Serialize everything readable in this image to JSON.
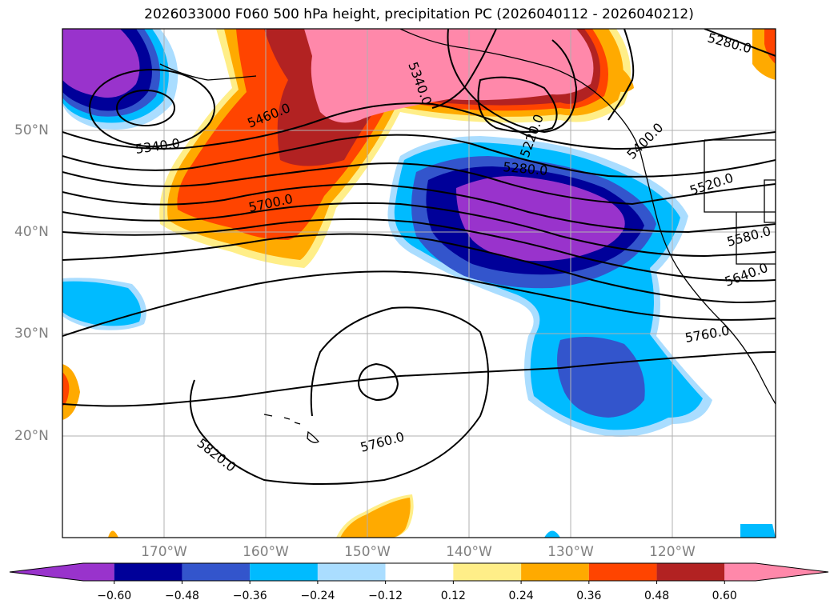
{
  "title": "2026033000 F060 500 hPa height, precipitation PC (2026040112 - 2026040212)",
  "lat_labels": [
    "50°N",
    "40°N",
    "30°N",
    "20°N"
  ],
  "lon_labels": [
    "170°W",
    "160°W",
    "150°W",
    "140°W",
    "130°W",
    "120°W"
  ],
  "colorbar": {
    "ticks": [
      "−0.60",
      "−0.48",
      "−0.36",
      "−0.24",
      "−0.12",
      "0.12",
      "0.24",
      "0.36",
      "0.48",
      "0.60"
    ],
    "colors": [
      "#9933cc",
      "#000099",
      "#3355cc",
      "#00bbff",
      "#aaddff",
      "#ffffff",
      "#ffee88",
      "#ffaa00",
      "#ff4400",
      "#b22222",
      "#ff88aa"
    ]
  },
  "contour_labels": [
    "5280.0",
    "5340.0",
    "5340.0",
    "5460.0",
    "5700.0",
    "5280.0",
    "5220.0",
    "5400.0",
    "5520.0",
    "5580.0",
    "5640.0",
    "5760.0",
    "5760.0",
    "5820.0"
  ],
  "fill_colors": {
    "purple": "#9933cc",
    "navy": "#000099",
    "blue": "#3355cc",
    "cyan": "#00bbff",
    "lightblue": "#aaddff",
    "yellow": "#ffee88",
    "orange": "#ffaa00",
    "redorange": "#ff4400",
    "darkred": "#b22222",
    "pink": "#ff88aa"
  }
}
